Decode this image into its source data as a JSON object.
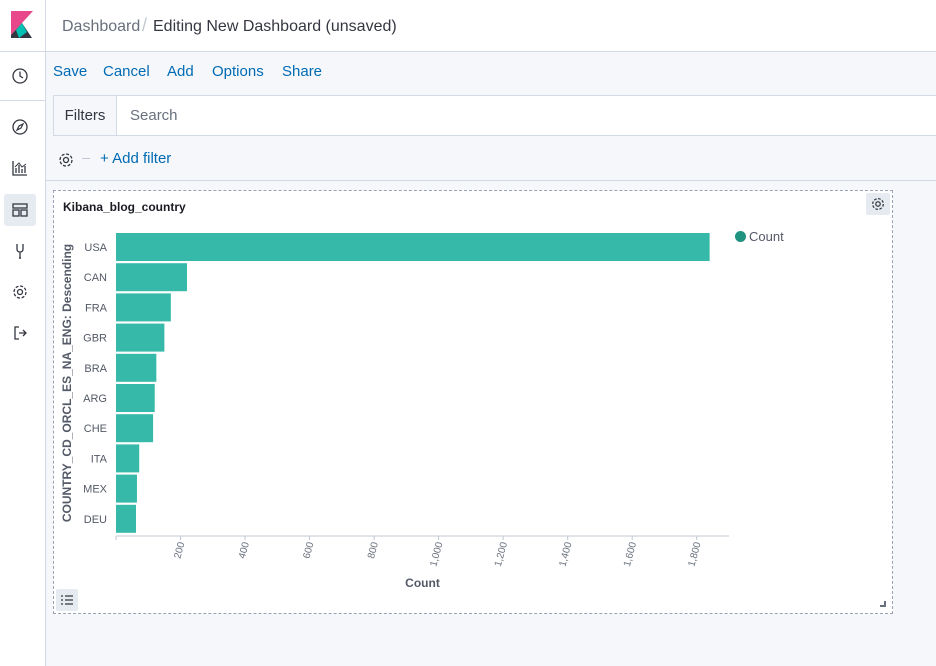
{
  "breadcrumb": {
    "root": "Dashboard",
    "separator": "/",
    "current": "Editing New Dashboard (unsaved)"
  },
  "topnav": {
    "save": "Save",
    "cancel": "Cancel",
    "add": "Add",
    "options": "Options",
    "share": "Share"
  },
  "querybar": {
    "filters_label": "Filters",
    "search_placeholder": "Search"
  },
  "filter_bar": {
    "add_filter": "+ Add filter"
  },
  "sidebar": {
    "items": [
      {
        "name": "recent-icon"
      },
      {
        "name": "discover-icon"
      },
      {
        "name": "visualize-icon"
      },
      {
        "name": "dashboard-icon",
        "active": true
      },
      {
        "name": "dev-tools-icon"
      },
      {
        "name": "management-icon"
      },
      {
        "name": "logout-icon"
      }
    ]
  },
  "colors": {
    "bar": "#36b9a9",
    "legend": "#209280",
    "link": "#006bb4"
  },
  "panel": {
    "title": "Kibana_blog_country"
  },
  "chart_data": {
    "type": "bar",
    "orientation": "horizontal",
    "title": "Kibana_blog_country",
    "categories": [
      "USA",
      "CAN",
      "FRA",
      "GBR",
      "BRA",
      "ARG",
      "CHE",
      "ITA",
      "MEX",
      "DEU"
    ],
    "series": [
      {
        "name": "Count",
        "values": [
          1840,
          220,
          170,
          150,
          125,
          120,
          115,
          72,
          65,
          62
        ]
      }
    ],
    "xlabel": "Count",
    "ylabel": "COUNTRY_CD_ORCL_ES_NA_ENG: Descending",
    "xlim": [
      0,
      1900
    ],
    "xticks": [
      200,
      400,
      600,
      800,
      1000,
      1200,
      1400,
      1600,
      1800
    ],
    "xtick_labels": [
      "200",
      "400",
      "600",
      "800",
      "1,000",
      "1,200",
      "1,400",
      "1,600",
      "1,800"
    ],
    "legend": "top-right",
    "grid": false
  }
}
